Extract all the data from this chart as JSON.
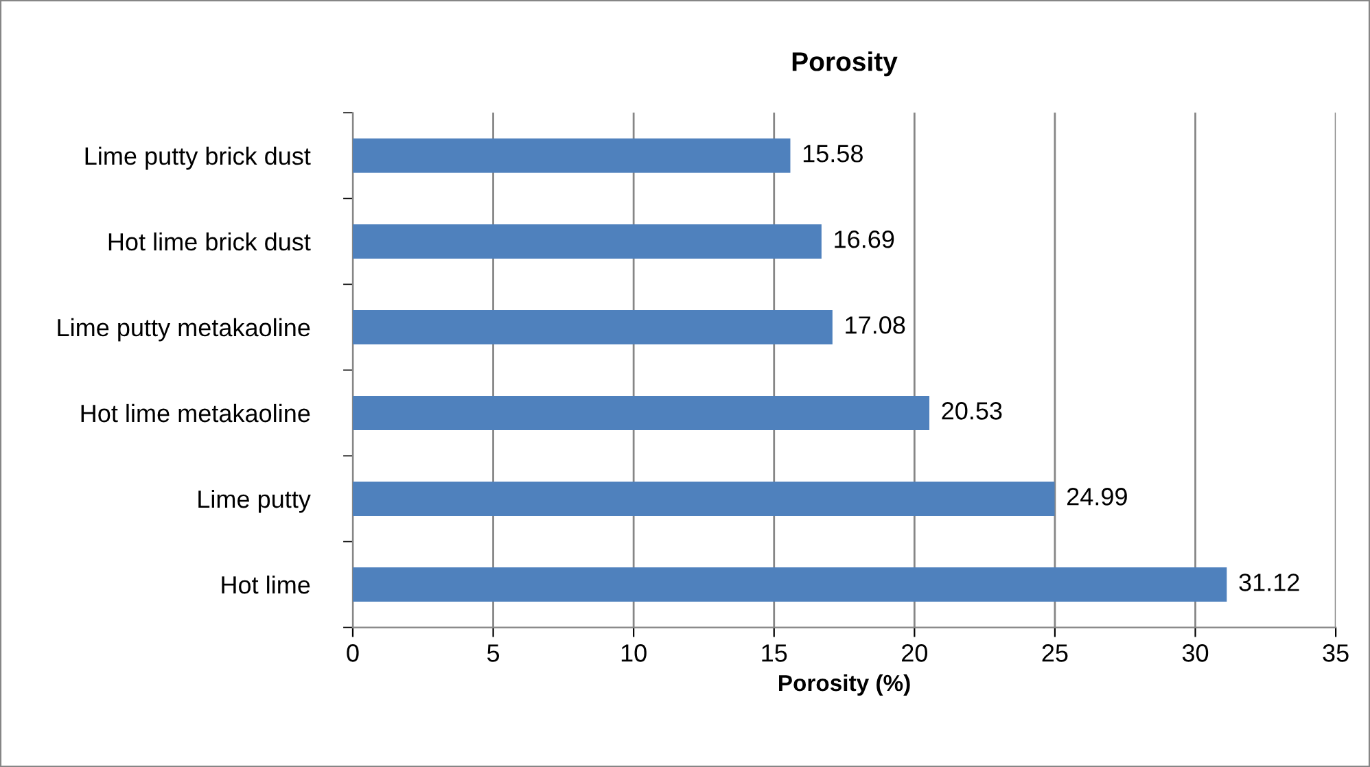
{
  "chart_data": {
    "type": "bar",
    "orientation": "horizontal",
    "title": "Porosity",
    "xlabel": "Porosity (%)",
    "categories": [
      "Lime putty brick dust",
      "Hot lime brick dust",
      "Lime putty metakaoline",
      "Hot lime metakaoline",
      "Lime putty",
      "Hot lime"
    ],
    "values": [
      15.58,
      16.69,
      17.08,
      20.53,
      24.99,
      31.12
    ],
    "color": "#4f81bd",
    "xlim": [
      0,
      35
    ],
    "xticks": [
      0,
      5,
      10,
      15,
      20,
      25,
      30,
      35
    ],
    "grid": "x",
    "data_labels": true,
    "legend": false
  }
}
